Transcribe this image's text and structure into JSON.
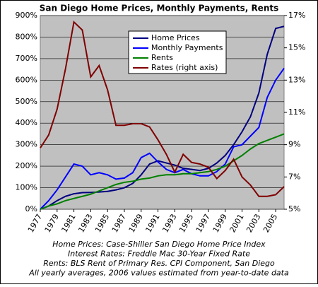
{
  "chart_data": {
    "type": "line",
    "title": "San Diego Home Prices, Monthly Payments, Rents",
    "x": [
      1977,
      1978,
      1979,
      1980,
      1981,
      1982,
      1983,
      1984,
      1985,
      1986,
      1987,
      1988,
      1989,
      1990,
      1991,
      1992,
      1993,
      1994,
      1995,
      1996,
      1997,
      1998,
      1999,
      2000,
      2001,
      2002,
      2003,
      2004,
      2005,
      2006
    ],
    "series": [
      {
        "name": "Home Prices",
        "color": "#000080",
        "values": [
          0,
          15,
          40,
          60,
          72,
          77,
          78,
          80,
          83,
          90,
          100,
          120,
          160,
          210,
          225,
          215,
          205,
          190,
          185,
          180,
          190,
          215,
          250,
          300,
          360,
          430,
          540,
          720,
          840,
          850
        ]
      },
      {
        "name": "Monthly Payments",
        "color": "#0000ff",
        "values": [
          0,
          40,
          90,
          150,
          210,
          200,
          160,
          170,
          160,
          140,
          145,
          170,
          240,
          260,
          220,
          185,
          170,
          185,
          165,
          155,
          155,
          175,
          210,
          290,
          300,
          340,
          380,
          520,
          600,
          655
        ]
      },
      {
        "name": "Rents",
        "color": "#008000",
        "values": [
          0,
          15,
          25,
          40,
          50,
          60,
          70,
          85,
          100,
          115,
          125,
          130,
          140,
          145,
          155,
          160,
          160,
          165,
          165,
          170,
          175,
          185,
          200,
          225,
          250,
          280,
          305,
          320,
          335,
          350
        ]
      },
      {
        "name": "Rates (right axis)",
        "color": "#800000",
        "axis": "y2",
        "values": [
          8.8,
          9.6,
          11.2,
          13.7,
          16.6,
          16.1,
          13.2,
          13.9,
          12.4,
          10.2,
          10.2,
          10.3,
          10.3,
          10.1,
          9.3,
          8.4,
          7.3,
          8.4,
          7.9,
          7.8,
          7.6,
          6.9,
          7.4,
          8.1,
          7.0,
          6.5,
          5.8,
          5.8,
          5.9,
          6.4
        ]
      }
    ],
    "xlim": [
      1977,
      2006
    ],
    "xticks": [
      1977,
      1979,
      1981,
      1983,
      1985,
      1987,
      1989,
      1991,
      1993,
      1995,
      1997,
      1999,
      2001,
      2003,
      2005
    ],
    "ylim": [
      0,
      900
    ],
    "yticks": [
      {
        "value": 0,
        "label": "0%"
      },
      {
        "value": 100,
        "label": "100%"
      },
      {
        "value": 200,
        "label": "200%"
      },
      {
        "value": 300,
        "label": "300%"
      },
      {
        "value": 400,
        "label": "400%"
      },
      {
        "value": 500,
        "label": "500%"
      },
      {
        "value": 600,
        "label": "600%"
      },
      {
        "value": 700,
        "label": "700%"
      },
      {
        "value": 800,
        "label": "800%"
      },
      {
        "value": 900,
        "label": "900%"
      }
    ],
    "y2lim": [
      5,
      17
    ],
    "y2ticks": [
      {
        "value": 5,
        "label": "5%"
      },
      {
        "value": 7,
        "label": "7%"
      },
      {
        "value": 9,
        "label": "9%"
      },
      {
        "value": 11,
        "label": "11%"
      },
      {
        "value": 13,
        "label": "13%"
      },
      {
        "value": 15,
        "label": "15%"
      },
      {
        "value": 17,
        "label": "17%"
      }
    ],
    "grid": true,
    "notes": [
      "Home Prices: Case-Shiller San Diego Home Price Index",
      "Interest Rates: Freddie Mac 30-Year Fixed Rate",
      "Rents: BLS Rent of Primary Res. CPI Component, San Diego",
      "All yearly averages, 2006 values estimated from year-to-date data"
    ]
  }
}
